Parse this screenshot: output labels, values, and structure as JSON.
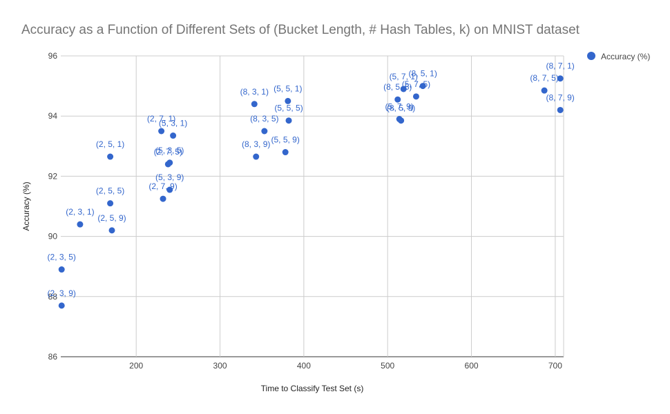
{
  "chart_data": {
    "type": "scatter",
    "title": "Accuracy as a Function of Different Sets of (Bucket Length, # Hash Tables, k) on MNIST dataset",
    "xlabel": "Time to Classify Test Set (s)",
    "ylabel": "Accuracy (%)",
    "xlim": [
      110,
      710
    ],
    "ylim": [
      86,
      96
    ],
    "x_ticks": [
      200,
      300,
      400,
      500,
      600,
      700
    ],
    "y_ticks": [
      86,
      88,
      90,
      92,
      94,
      96
    ],
    "grid": true,
    "legend": {
      "position": "top-right",
      "entries": [
        "Accuracy (%)"
      ]
    },
    "series": [
      {
        "name": "Accuracy (%)",
        "color": "#3366cc",
        "points": [
          {
            "x": 111,
            "y": 88.9,
            "label": "(2, 3, 5)"
          },
          {
            "x": 111,
            "y": 87.7,
            "label": "(2, 3, 9)"
          },
          {
            "x": 133,
            "y": 90.4,
            "label": "(2, 3, 1)"
          },
          {
            "x": 169,
            "y": 92.65,
            "label": "(2, 5, 1)"
          },
          {
            "x": 169,
            "y": 91.1,
            "label": "(2, 5, 5)"
          },
          {
            "x": 171,
            "y": 90.2,
            "label": "(2, 5, 9)"
          },
          {
            "x": 230,
            "y": 93.5,
            "label": "(2, 7, 1)"
          },
          {
            "x": 238,
            "y": 92.4,
            "label": "(2, 7, 5)"
          },
          {
            "x": 232,
            "y": 91.25,
            "label": "(2, 7, 9)"
          },
          {
            "x": 244,
            "y": 93.35,
            "label": "(5, 3, 1)"
          },
          {
            "x": 240,
            "y": 92.45,
            "label": "(5, 3, 5)"
          },
          {
            "x": 240,
            "y": 91.55,
            "label": "(5, 3, 9)"
          },
          {
            "x": 341,
            "y": 94.4,
            "label": "(8, 3, 1)"
          },
          {
            "x": 353,
            "y": 93.5,
            "label": "(8, 3, 5)"
          },
          {
            "x": 343,
            "y": 92.65,
            "label": "(8, 3, 9)"
          },
          {
            "x": 381,
            "y": 94.5,
            "label": "(5, 5, 1)"
          },
          {
            "x": 382,
            "y": 93.85,
            "label": "(5, 5, 5)"
          },
          {
            "x": 378,
            "y": 92.8,
            "label": "(5, 5, 9)"
          },
          {
            "x": 519,
            "y": 94.9,
            "label": "(5, 7, 1)"
          },
          {
            "x": 534,
            "y": 94.65,
            "label": "(5, 7, 5)"
          },
          {
            "x": 514,
            "y": 93.9,
            "label": "(5, 7, 9)"
          },
          {
            "x": 542,
            "y": 95.0,
            "label": "(8, 5, 1)"
          },
          {
            "x": 512,
            "y": 94.55,
            "label": "(8, 5, 5)"
          },
          {
            "x": 516,
            "y": 93.85,
            "label": "(8, 5, 9)"
          },
          {
            "x": 706,
            "y": 95.25,
            "label": "(8, 7, 1)"
          },
          {
            "x": 687,
            "y": 94.85,
            "label": "(8, 7, 5)"
          },
          {
            "x": 706,
            "y": 94.2,
            "label": "(8, 7, 9)"
          }
        ]
      }
    ]
  }
}
